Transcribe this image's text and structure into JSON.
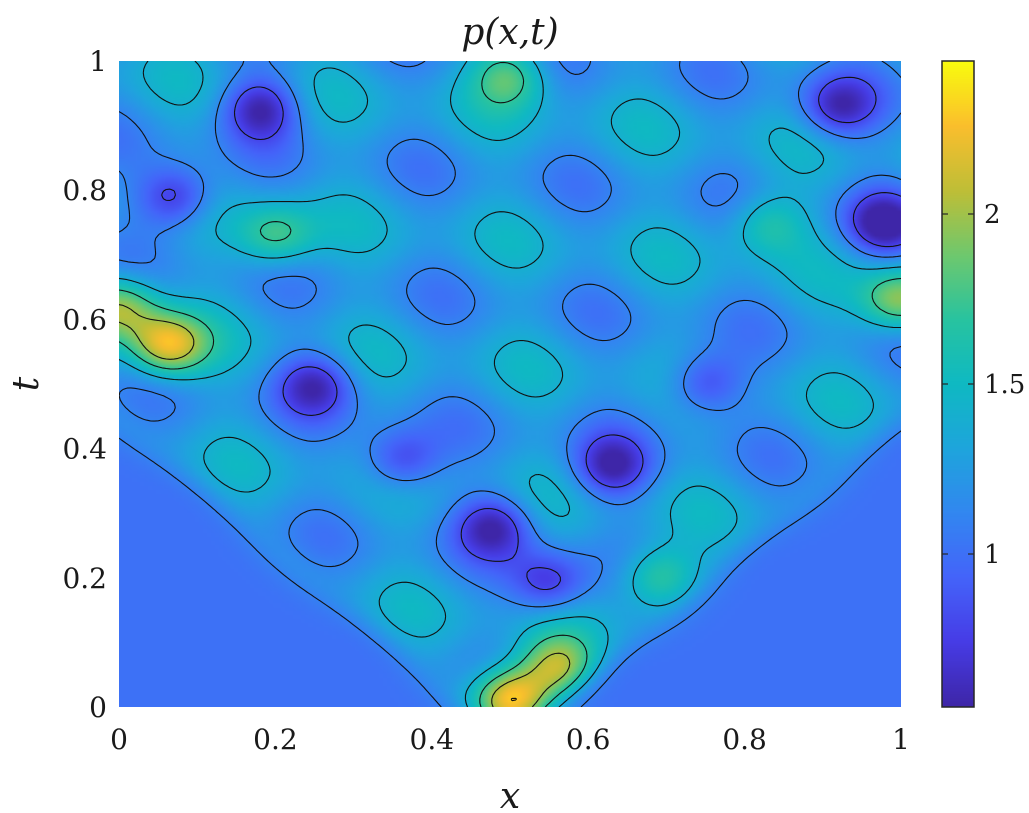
{
  "chart_data": {
    "type": "heatmap",
    "title": "p(x,t)",
    "xlabel": "x",
    "ylabel": "t",
    "xlim": [
      0,
      1
    ],
    "ylim": [
      0,
      1
    ],
    "x_ticks": [
      "0",
      "0.2",
      "0.4",
      "0.6",
      "0.8",
      "1"
    ],
    "y_ticks": [
      "0",
      "0.2",
      "0.4",
      "0.6",
      "0.8",
      "1"
    ],
    "colorbar": {
      "range": [
        0.55,
        2.45
      ],
      "ticks": [
        "1",
        "1.5",
        "2"
      ],
      "tick_values": [
        1,
        1.5,
        2
      ],
      "colormap": "parula"
    },
    "background_value": 1.0,
    "contours": true,
    "features": [
      {
        "x": 0.5,
        "t": 0.01,
        "value": 2.45
      },
      {
        "x": 0.06,
        "t": 0.56,
        "value": 2.2
      },
      {
        "x": 0.0,
        "t": 0.62,
        "value": 2.0
      },
      {
        "x": 1.0,
        "t": 0.63,
        "value": 2.0
      },
      {
        "x": 0.56,
        "t": 0.06,
        "value": 2.0
      },
      {
        "x": 0.69,
        "t": 0.2,
        "value": 1.85
      },
      {
        "x": 0.2,
        "t": 0.73,
        "value": 1.8
      },
      {
        "x": 0.83,
        "t": 0.75,
        "value": 1.7
      },
      {
        "x": 0.5,
        "t": 0.98,
        "value": 1.8
      },
      {
        "x": 0.18,
        "t": 0.93,
        "value": 0.6
      },
      {
        "x": 0.07,
        "t": 0.79,
        "value": 0.6
      },
      {
        "x": 0.92,
        "t": 0.93,
        "value": 0.65
      },
      {
        "x": 0.98,
        "t": 0.75,
        "value": 0.6
      },
      {
        "x": 0.25,
        "t": 0.5,
        "value": 0.7
      },
      {
        "x": 0.36,
        "t": 0.38,
        "value": 0.7
      },
      {
        "x": 0.48,
        "t": 0.28,
        "value": 0.65
      },
      {
        "x": 0.55,
        "t": 0.19,
        "value": 0.7
      },
      {
        "x": 0.63,
        "t": 0.37,
        "value": 0.65
      },
      {
        "x": 0.75,
        "t": 0.5,
        "value": 0.7
      }
    ]
  }
}
